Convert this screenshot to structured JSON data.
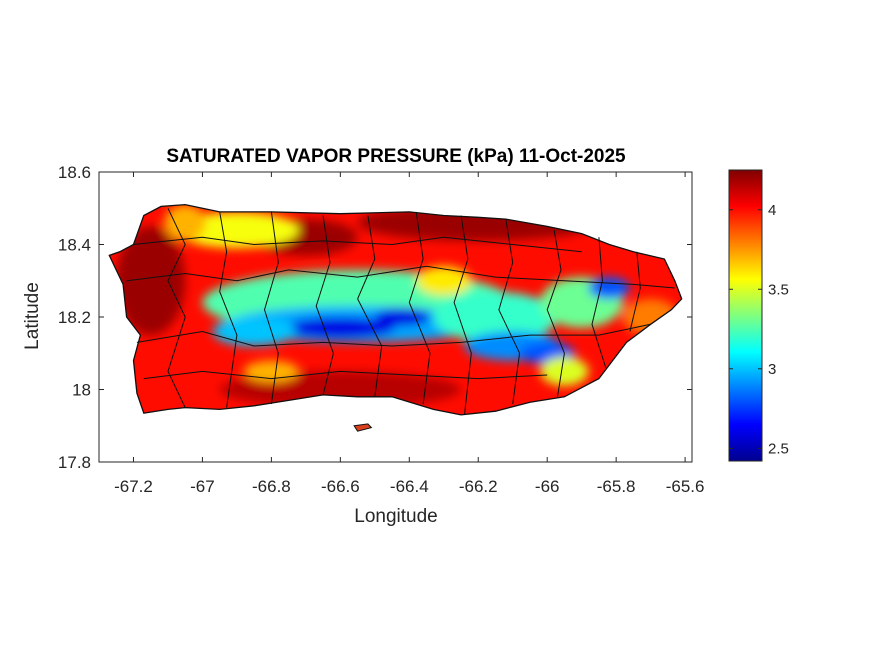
{
  "chart_data": {
    "type": "heatmap",
    "title": "SATURATED VAPOR PRESSURE (kPa) 11-Oct-2025",
    "xlabel": "Longitude",
    "ylabel": "Latitude",
    "xlim": [
      -67.3,
      -65.58
    ],
    "ylim": [
      17.8,
      18.6
    ],
    "xticks": [
      -67.2,
      -67,
      -66.8,
      -66.6,
      -66.4,
      -66.2,
      -66,
      -65.8,
      -65.6
    ],
    "xtick_labels": [
      "-67.2",
      "-67",
      "-66.8",
      "-66.6",
      "-66.4",
      "-66.2",
      "-66",
      "-65.8",
      "-65.6"
    ],
    "yticks": [
      17.8,
      18,
      18.2,
      18.4,
      18.6
    ],
    "ytick_labels": [
      "17.8",
      "18",
      "18.2",
      "18.4",
      "18.6"
    ],
    "colorbar": {
      "colormap": "jet",
      "range": [
        2.42,
        4.25
      ],
      "ticks": [
        2.5,
        3,
        3.5,
        4
      ],
      "tick_labels": [
        "2.5",
        "3",
        "3.5",
        "4"
      ]
    },
    "field_features": [
      {
        "description": "central mountain low",
        "lon_range": [
          -66.95,
          -66.0
        ],
        "lat": 18.17,
        "value": 2.7
      },
      {
        "description": "eastern mountain low",
        "lon_range": [
          -66.0,
          -65.75
        ],
        "lat": 18.27,
        "value": 2.9
      },
      {
        "description": "coastal and northern lowlands",
        "value": 4.1
      }
    ],
    "grid": false,
    "legend": "colorbar-right"
  }
}
